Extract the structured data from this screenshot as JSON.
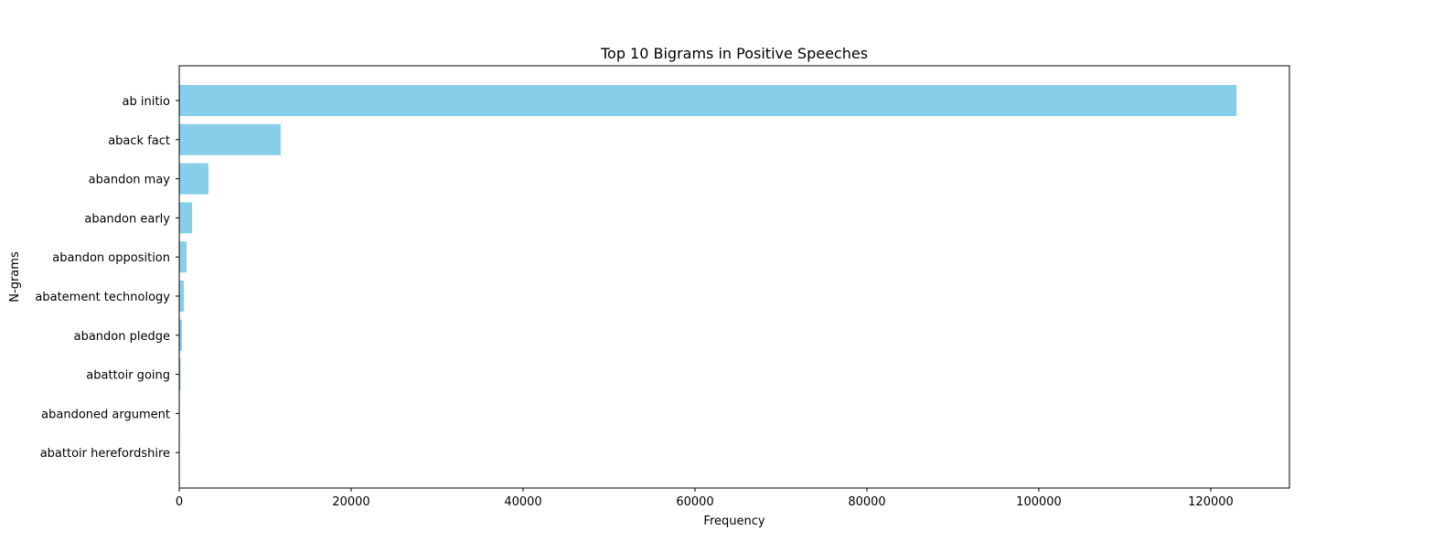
{
  "chart_data": {
    "type": "bar",
    "orientation": "horizontal",
    "title": "Top 10 Bigrams in Positive Speeches",
    "xlabel": "Frequency",
    "ylabel": "N-grams",
    "categories": [
      "ab initio",
      "aback fact",
      "abandon may",
      "abandon early",
      "abandon opposition",
      "abatement technology",
      "abandon pledge",
      "abattoir going",
      "abandoned argument",
      "abattoir herefordshire"
    ],
    "values": [
      123000,
      11800,
      3400,
      1500,
      850,
      550,
      300,
      150,
      60,
      30
    ],
    "xlim": [
      0,
      129150
    ],
    "xticks": [
      0,
      20000,
      40000,
      60000,
      80000,
      100000,
      120000
    ],
    "bar_color": "#87ceeb",
    "grid": false,
    "legend": "none"
  }
}
